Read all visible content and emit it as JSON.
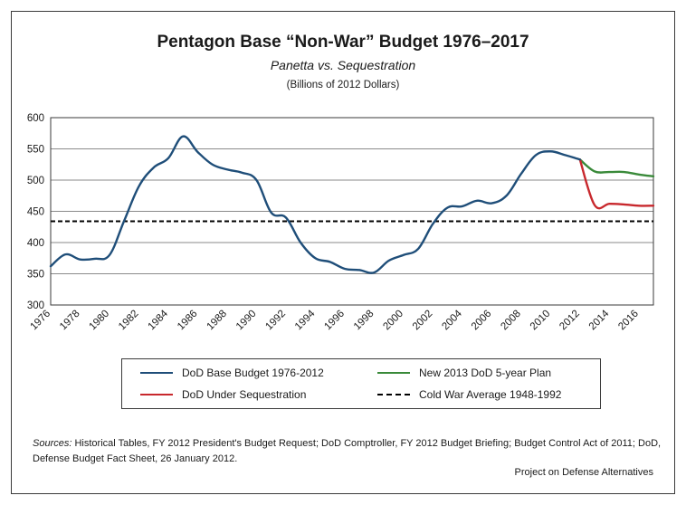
{
  "title": "Pentagon Base “Non-War” Budget 1976–2017",
  "subtitle": "Panetta vs. Sequestration",
  "units": "(Billions of 2012 Dollars)",
  "chart_data": {
    "type": "line",
    "title": "Pentagon Base “Non-War” Budget 1976–2017",
    "xlabel": "",
    "ylabel": "",
    "xlim": [
      1976,
      2017
    ],
    "ylim": [
      300,
      600
    ],
    "yticks": [
      "300",
      "350",
      "400",
      "450",
      "500",
      "550",
      "600"
    ],
    "xticks": [
      "1976",
      "1978",
      "1980",
      "1982",
      "1984",
      "1986",
      "1988",
      "1990",
      "1992",
      "1994",
      "1996",
      "1998",
      "2000",
      "2002",
      "2004",
      "2006",
      "2008",
      "2010",
      "2012",
      "2014",
      "2016"
    ],
    "grid": true,
    "legend_position": "bottom",
    "series": [
      {
        "name": "DoD Base Budget 1976-2012",
        "color": "#1f4e79",
        "x": [
          1976,
          1977,
          1978,
          1979,
          1980,
          1981,
          1982,
          1983,
          1984,
          1985,
          1986,
          1987,
          1988,
          1989,
          1990,
          1991,
          1992,
          1993,
          1994,
          1995,
          1996,
          1997,
          1998,
          1999,
          2000,
          2001,
          2002,
          2003,
          2004,
          2005,
          2006,
          2007,
          2008,
          2009,
          2010,
          2011,
          2012
        ],
        "y": [
          362,
          381,
          373,
          374,
          380,
          435,
          490,
          520,
          535,
          570,
          545,
          525,
          517,
          512,
          500,
          448,
          440,
          400,
          375,
          369,
          358,
          356,
          352,
          371,
          380,
          390,
          430,
          456,
          458,
          467,
          463,
          475,
          510,
          540,
          546,
          540,
          533
        ]
      },
      {
        "name": "New 2013 DoD 5-year Plan",
        "color": "#3a8a3a",
        "x": [
          2012,
          2013,
          2014,
          2015,
          2016,
          2017
        ],
        "y": [
          533,
          514,
          513,
          513,
          509,
          506
        ]
      },
      {
        "name": "DoD Under Sequestration",
        "color": "#c8282d",
        "x": [
          2012,
          2013,
          2014,
          2015,
          2016,
          2017
        ],
        "y": [
          533,
          460,
          462,
          461,
          459,
          459
        ]
      },
      {
        "name": "Cold War Average 1948-1992",
        "color": "#000000",
        "x": [
          1976,
          2017
        ],
        "y": [
          434,
          434
        ]
      }
    ]
  },
  "sources": {
    "lead": "Sources:",
    "text": "Historical Tables, FY 2012 President's Budget Request; DoD Comptroller, FY 2012  Budget Briefing; Budget Control Act of 2011; DoD, Defense Budget Fact Sheet, 26 January 2012."
  },
  "credit": "Project on Defense Alternatives"
}
